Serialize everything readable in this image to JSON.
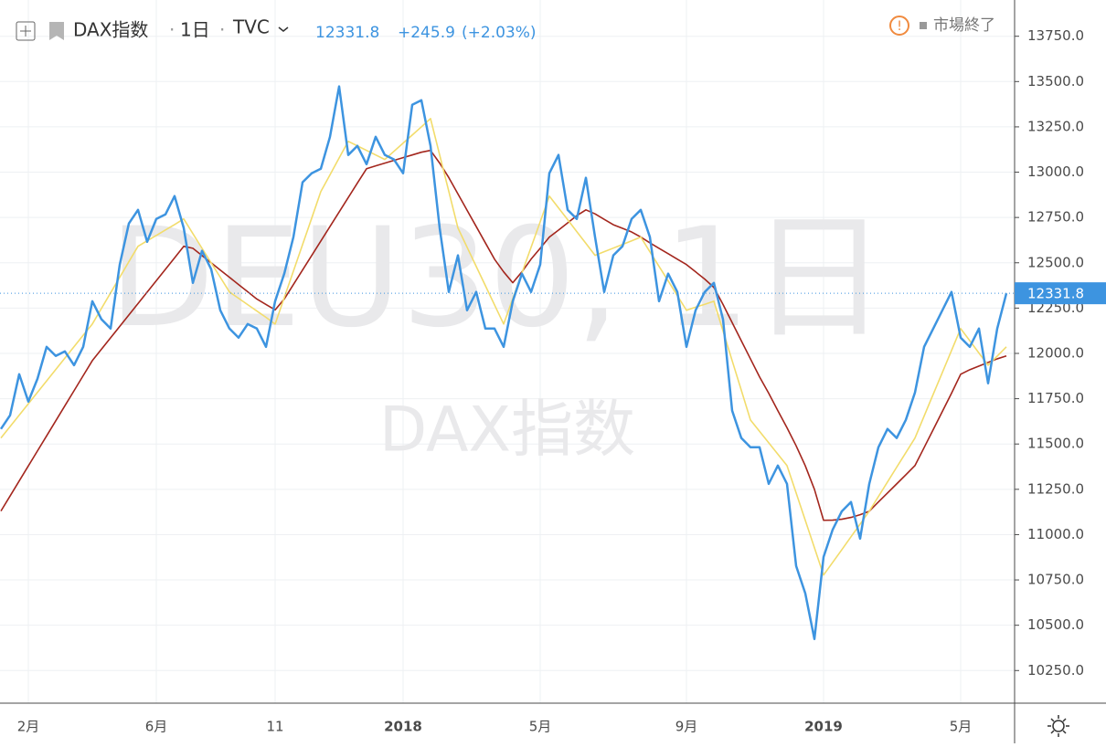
{
  "header": {
    "symbol": "DAX指数",
    "interval": "1日",
    "source": "TVC",
    "price": "12331.8",
    "change": "+245.9",
    "change_pct": "(+2.03%)",
    "status": "市場終了"
  },
  "watermark": {
    "line1": "DEU30, 1日",
    "line2": "DAX指数"
  },
  "chart_data": {
    "type": "line",
    "categories": [
      null,
      null,
      null,
      "2月",
      null,
      null,
      null,
      null,
      null,
      null,
      null,
      null,
      null,
      null,
      null,
      null,
      null,
      "6月",
      null,
      null,
      null,
      null,
      null,
      null,
      null,
      null,
      null,
      null,
      null,
      null,
      "11",
      null,
      null,
      null,
      null,
      null,
      null,
      null,
      null,
      null,
      null,
      null,
      null,
      null,
      "2018",
      null,
      null,
      null,
      null,
      null,
      null,
      null,
      null,
      null,
      null,
      null,
      null,
      null,
      null,
      "5月",
      null,
      null,
      null,
      null,
      null,
      null,
      null,
      null,
      null,
      null,
      null,
      null,
      null,
      null,
      null,
      "9月",
      null,
      null,
      null,
      null,
      null,
      null,
      null,
      null,
      null,
      null,
      null,
      null,
      null,
      null,
      "2019",
      null,
      null,
      null,
      null,
      null,
      null,
      null,
      null,
      null,
      null,
      null,
      null,
      null,
      null,
      "5月",
      null,
      null,
      null,
      null,
      null
    ],
    "series": [
      {
        "name": "DAX指数",
        "color": "#3d94e0",
        "values": [
          11583,
          11658,
          11885,
          11734,
          11860,
          12036,
          11986,
          12011,
          11935,
          12036,
          12288,
          12188,
          12137,
          12490,
          12717,
          12792,
          12616,
          12742,
          12767,
          12868,
          12692,
          12389,
          12566,
          12465,
          12238,
          12137,
          12087,
          12162,
          12137,
          12036,
          12288,
          12440,
          12642,
          12944,
          12994,
          13019,
          13195,
          13473,
          13095,
          13145,
          13044,
          13195,
          13095,
          13070,
          12994,
          13372,
          13397,
          13145,
          12692,
          12339,
          12541,
          12238,
          12339,
          12137,
          12137,
          12036,
          12288,
          12440,
          12339,
          12490,
          12994,
          13095,
          12792,
          12742,
          12969,
          12642,
          12339,
          12541,
          12591,
          12742,
          12792,
          12642,
          12288,
          12440,
          12339,
          12036,
          12238,
          12339,
          12389,
          12188,
          11684,
          11533,
          11482,
          11482,
          11280,
          11381,
          11280,
          10827,
          10676,
          10424,
          10877,
          11028,
          11129,
          11180,
          10978,
          11280,
          11482,
          11583,
          11533,
          11633,
          11784,
          12036,
          12137,
          12238,
          12339,
          12087,
          12036,
          12137,
          11835,
          12137,
          12331.8
        ]
      },
      {
        "color": "#f2dc6b",
        "values": [
          11533,
          11596,
          11659,
          11722,
          11785,
          11848,
          11911,
          11974,
          12037,
          12100,
          12162,
          12248,
          12334,
          12420,
          12506,
          12591,
          12621,
          12651,
          12681,
          12711,
          12742,
          12661,
          12580,
          12500,
          12420,
          12339,
          12304,
          12269,
          12234,
          12199,
          12162,
          12308,
          12454,
          12600,
          12746,
          12893,
          12985,
          13078,
          13170,
          13145,
          13120,
          13095,
          13070,
          13115,
          13160,
          13205,
          13250,
          13296,
          13095,
          12894,
          12692,
          12586,
          12480,
          12374,
          12268,
          12162,
          12303,
          12444,
          12585,
          12726,
          12868,
          12803,
          12738,
          12672,
          12607,
          12541,
          12561,
          12581,
          12601,
          12621,
          12642,
          12561,
          12480,
          12400,
          12319,
          12238,
          12255,
          12271,
          12288,
          12124,
          11960,
          11797,
          11633,
          11570,
          11507,
          11444,
          11381,
          11230,
          11079,
          10928,
          10777,
          10847,
          10917,
          10988,
          11058,
          11129,
          11210,
          11291,
          11372,
          11452,
          11533,
          11654,
          11775,
          11895,
          12016,
          12137,
          12070,
          12002,
          11935,
          11985,
          12036
        ]
      },
      {
        "color": "#a3261d",
        "values": [
          11130,
          11213,
          11296,
          11379,
          11462,
          11545,
          11628,
          11711,
          11794,
          11877,
          11960,
          12023,
          12086,
          12149,
          12212,
          12275,
          12338,
          12401,
          12464,
          12527,
          12591,
          12580,
          12540,
          12500,
          12460,
          12420,
          12380,
          12340,
          12300,
          12270,
          12240,
          12300,
          12380,
          12460,
          12540,
          12620,
          12700,
          12780,
          12860,
          12940,
          13019,
          13035,
          13050,
          13065,
          13080,
          13095,
          13110,
          13120,
          13050,
          12970,
          12880,
          12790,
          12700,
          12610,
          12520,
          12450,
          12390,
          12450,
          12520,
          12580,
          12642,
          12680,
          12720,
          12760,
          12792,
          12770,
          12740,
          12710,
          12690,
          12670,
          12642,
          12610,
          12580,
          12550,
          12520,
          12490,
          12450,
          12410,
          12364,
          12270,
          12170,
          12070,
          11970,
          11870,
          11780,
          11684,
          11590,
          11490,
          11380,
          11250,
          11079,
          11080,
          11085,
          11095,
          11110,
          11129,
          11180,
          11230,
          11280,
          11330,
          11381,
          11480,
          11580,
          11680,
          11780,
          11885,
          11910,
          11930,
          11950,
          11970,
          11986
        ]
      }
    ],
    "ylim": [
      10070,
      13950
    ],
    "yticks": [
      {
        "value": 10250,
        "label": "10250.0"
      },
      {
        "value": 10500,
        "label": "10500.0"
      },
      {
        "value": 10750,
        "label": "10750.0"
      },
      {
        "value": 11000,
        "label": "11000.0"
      },
      {
        "value": 11250,
        "label": "11250.0"
      },
      {
        "value": 11500,
        "label": "11500.0"
      },
      {
        "value": 11750,
        "label": "11750.0"
      },
      {
        "value": 12000,
        "label": "12000.0"
      },
      {
        "value": 12250,
        "label": "12250.0"
      },
      {
        "value": 12500,
        "label": "12500.0"
      },
      {
        "value": 12750,
        "label": "12750.0"
      },
      {
        "value": 13000,
        "label": "13000.0"
      },
      {
        "value": 13250,
        "label": "13250.0"
      },
      {
        "value": 13500,
        "label": "13500.0"
      },
      {
        "value": 13750,
        "label": "13750.0"
      }
    ],
    "grid": true
  }
}
